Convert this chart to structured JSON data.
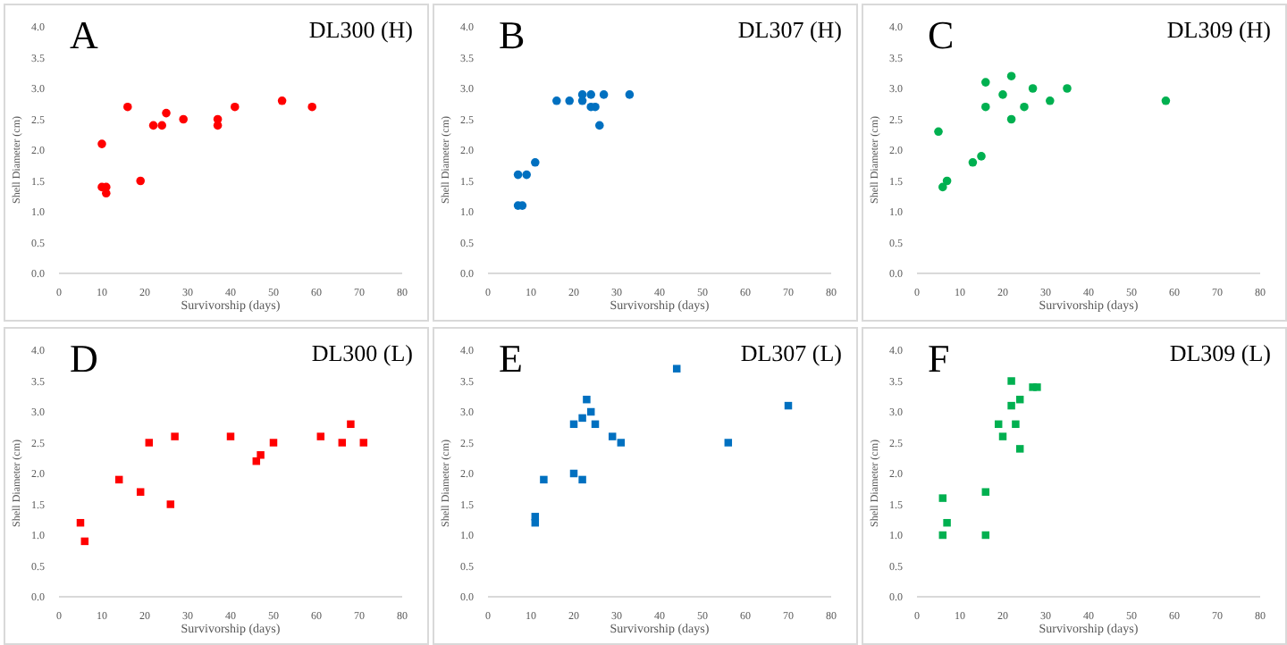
{
  "chart_data": [
    {
      "type": "scatter",
      "title": "DL300 (H)",
      "annotations": [
        "A"
      ],
      "xlabel": "Survivorship (days)",
      "ylabel": "Shell Diameter (cm)",
      "marker": "circle",
      "color": "#ff0000",
      "xlim": [
        0,
        80
      ],
      "xticks": [
        0,
        10,
        20,
        30,
        40,
        50,
        60,
        70,
        80
      ],
      "ylim": [
        0,
        4
      ],
      "yticks": [
        {
          "value": 0,
          "label": "0.0"
        },
        {
          "value": 0.5,
          "label": "0.5"
        },
        {
          "value": 1,
          "label": "1.0"
        },
        {
          "value": 1.5,
          "label": "1.5"
        },
        {
          "value": 2,
          "label": "2.0"
        },
        {
          "value": 2.5,
          "label": "2.5"
        },
        {
          "value": 3,
          "label": "3.0"
        },
        {
          "value": 3.5,
          "label": "3.5"
        },
        {
          "value": 4,
          "label": "4.0"
        }
      ],
      "x": [
        10,
        10,
        11,
        11,
        16,
        19,
        22,
        24,
        25,
        29,
        37,
        37,
        41,
        52,
        59
      ],
      "values": [
        2.1,
        1.4,
        1.4,
        1.3,
        2.7,
        1.5,
        2.4,
        2.4,
        2.6,
        2.5,
        2.5,
        2.4,
        2.7,
        2.8,
        2.7
      ]
    },
    {
      "type": "scatter",
      "title": "DL307 (H)",
      "annotations": [
        "B"
      ],
      "xlabel": "Survivorship (days)",
      "ylabel": "Shell Diameter (cm)",
      "marker": "circle",
      "color": "#0070c0",
      "xlim": [
        0,
        80
      ],
      "xticks": [
        0,
        10,
        20,
        30,
        40,
        50,
        60,
        70,
        80
      ],
      "ylim": [
        0,
        4
      ],
      "yticks": [
        {
          "value": 0,
          "label": "0.0"
        },
        {
          "value": 0.5,
          "label": "0.5"
        },
        {
          "value": 1,
          "label": "1.0"
        },
        {
          "value": 1.5,
          "label": "1.5"
        },
        {
          "value": 2,
          "label": "2.0"
        },
        {
          "value": 2.5,
          "label": "2.5"
        },
        {
          "value": 3,
          "label": "3.0"
        },
        {
          "value": 3.5,
          "label": "3.5"
        },
        {
          "value": 4,
          "label": "4.0"
        }
      ],
      "x": [
        7,
        7,
        8,
        9,
        11,
        16,
        19,
        22,
        22,
        24,
        24,
        25,
        26,
        27,
        33
      ],
      "values": [
        1.6,
        1.1,
        1.1,
        1.6,
        1.8,
        2.8,
        2.8,
        2.9,
        2.8,
        2.9,
        2.7,
        2.7,
        2.4,
        2.9,
        2.9
      ]
    },
    {
      "type": "scatter",
      "title": "DL309 (H)",
      "annotations": [
        "C"
      ],
      "xlabel": "Survivorship (days)",
      "ylabel": "Shell Diameter (cm)",
      "marker": "circle",
      "color": "#00b050",
      "xlim": [
        0,
        80
      ],
      "xticks": [
        0,
        10,
        20,
        30,
        40,
        50,
        60,
        70,
        80
      ],
      "ylim": [
        0,
        4
      ],
      "yticks": [
        {
          "value": 0,
          "label": "0.0"
        },
        {
          "value": 0.5,
          "label": "0.5"
        },
        {
          "value": 1,
          "label": "1.0"
        },
        {
          "value": 1.5,
          "label": "1.5"
        },
        {
          "value": 2,
          "label": "2.0"
        },
        {
          "value": 2.5,
          "label": "2.5"
        },
        {
          "value": 3,
          "label": "3.0"
        },
        {
          "value": 3.5,
          "label": "3.5"
        },
        {
          "value": 4,
          "label": "4.0"
        }
      ],
      "x": [
        5,
        6,
        7,
        13,
        15,
        16,
        16,
        20,
        22,
        22,
        25,
        27,
        31,
        35,
        58
      ],
      "values": [
        2.3,
        1.4,
        1.5,
        1.8,
        1.9,
        3.1,
        2.7,
        2.9,
        3.2,
        2.5,
        2.7,
        3.0,
        2.8,
        3.0,
        2.8
      ]
    },
    {
      "type": "scatter",
      "title": "DL300 (L)",
      "annotations": [
        "D"
      ],
      "xlabel": "Survivorship (days)",
      "ylabel": "Shell Diameter (cm)",
      "marker": "square",
      "color": "#ff0000",
      "xlim": [
        0,
        80
      ],
      "xticks": [
        0,
        10,
        20,
        30,
        40,
        50,
        60,
        70,
        80
      ],
      "ylim": [
        0,
        4
      ],
      "yticks": [
        {
          "value": 0,
          "label": "0.0"
        },
        {
          "value": 0.5,
          "label": "0.5"
        },
        {
          "value": 1,
          "label": "1.0"
        },
        {
          "value": 1.5,
          "label": "1.5"
        },
        {
          "value": 2,
          "label": "2.0"
        },
        {
          "value": 2.5,
          "label": "2.5"
        },
        {
          "value": 3,
          "label": "3.0"
        },
        {
          "value": 3.5,
          "label": "3.5"
        },
        {
          "value": 4,
          "label": "4.0"
        }
      ],
      "x": [
        5,
        6,
        14,
        19,
        21,
        26,
        27,
        40,
        46,
        47,
        50,
        61,
        66,
        68,
        71
      ],
      "values": [
        1.2,
        0.9,
        1.9,
        1.7,
        2.5,
        1.5,
        2.6,
        2.6,
        2.2,
        2.3,
        2.5,
        2.6,
        2.5,
        2.8,
        2.5
      ]
    },
    {
      "type": "scatter",
      "title": "DL307 (L)",
      "annotations": [
        "E"
      ],
      "xlabel": "Survivorship (days)",
      "ylabel": "Shell Diameter (cm)",
      "marker": "square",
      "color": "#0070c0",
      "xlim": [
        0,
        80
      ],
      "xticks": [
        0,
        10,
        20,
        30,
        40,
        50,
        60,
        70,
        80
      ],
      "ylim": [
        0,
        4
      ],
      "yticks": [
        {
          "value": 0,
          "label": "0.0"
        },
        {
          "value": 0.5,
          "label": "0.5"
        },
        {
          "value": 1,
          "label": "1.0"
        },
        {
          "value": 1.5,
          "label": "1.5"
        },
        {
          "value": 2,
          "label": "2.0"
        },
        {
          "value": 2.5,
          "label": "2.5"
        },
        {
          "value": 3,
          "label": "3.0"
        },
        {
          "value": 3.5,
          "label": "3.5"
        },
        {
          "value": 4,
          "label": "4.0"
        }
      ],
      "x": [
        11,
        11,
        13,
        20,
        20,
        22,
        22,
        23,
        24,
        25,
        29,
        31,
        44,
        56,
        70
      ],
      "values": [
        1.3,
        1.2,
        1.9,
        2.8,
        2.0,
        2.9,
        1.9,
        3.2,
        3.0,
        2.8,
        2.6,
        2.5,
        3.7,
        2.5,
        3.1
      ]
    },
    {
      "type": "scatter",
      "title": "DL309 (L)",
      "annotations": [
        "F"
      ],
      "xlabel": "Survivorship (days)",
      "ylabel": "Shell Diameter (cm)",
      "marker": "square",
      "color": "#00b050",
      "xlim": [
        0,
        80
      ],
      "xticks": [
        0,
        10,
        20,
        30,
        40,
        50,
        60,
        70,
        80
      ],
      "ylim": [
        0,
        4
      ],
      "yticks": [
        {
          "value": 0,
          "label": "0.0"
        },
        {
          "value": 0.5,
          "label": "0.5"
        },
        {
          "value": 1,
          "label": "1.0"
        },
        {
          "value": 1.5,
          "label": "1.5"
        },
        {
          "value": 2,
          "label": "2.0"
        },
        {
          "value": 2.5,
          "label": "2.5"
        },
        {
          "value": 3,
          "label": "3.0"
        },
        {
          "value": 3.5,
          "label": "3.5"
        },
        {
          "value": 4,
          "label": "4.0"
        }
      ],
      "x": [
        6,
        6,
        7,
        16,
        16,
        19,
        20,
        22,
        22,
        23,
        24,
        24,
        27,
        28
      ],
      "values": [
        1.6,
        1.0,
        1.2,
        1.7,
        1.0,
        2.8,
        2.6,
        3.5,
        3.1,
        2.8,
        3.2,
        2.4,
        3.4,
        3.4
      ]
    }
  ]
}
